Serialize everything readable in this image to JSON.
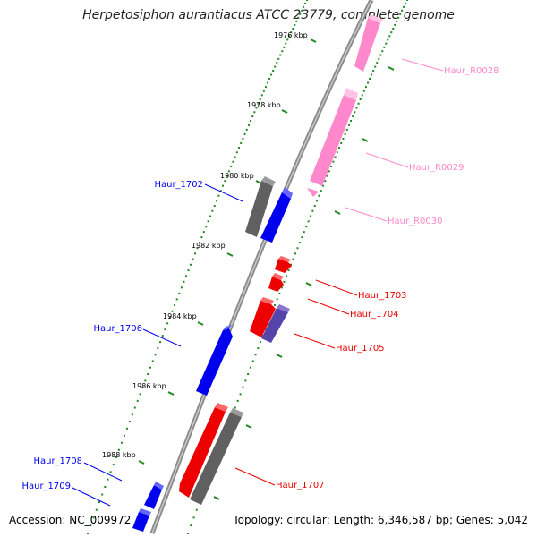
{
  "title": "Herpetosiphon aurantiacus ATCC 23779, complete genome",
  "footer": {
    "accession": "Accession: NC_009972",
    "summary": "Topology: circular; Length: 6,346,587 bp; Genes: 5,042"
  },
  "colors": {
    "forward_cds": "#0000ee",
    "reverse_cds": "#ee0000",
    "other_gene": "#606060",
    "rna": "#ff88cc",
    "pseudo": "#5544aa",
    "tick": "#228822",
    "backbone": "#888888"
  },
  "ticks": [
    {
      "label": "1976 kbp"
    },
    {
      "label": "1978 kbp"
    },
    {
      "label": "1980 kbp"
    },
    {
      "label": "1982 kbp"
    },
    {
      "label": "1984 kbp"
    },
    {
      "label": "1986 kbp"
    },
    {
      "label": "1988 kbp"
    }
  ],
  "features": [
    {
      "name": "Haur_R0028",
      "strand": "+",
      "kind": "rna"
    },
    {
      "name": "Haur_R0029",
      "strand": "+",
      "kind": "rna"
    },
    {
      "name": "Haur_R0030",
      "strand": "+",
      "kind": "rna"
    },
    {
      "name": "Haur_1702",
      "strand": "-",
      "kind": "cds"
    },
    {
      "name": "Haur_1703",
      "strand": "+",
      "kind": "cds"
    },
    {
      "name": "Haur_1704",
      "strand": "+",
      "kind": "cds"
    },
    {
      "name": "Haur_1705",
      "strand": "+",
      "kind": "cds"
    },
    {
      "name": "Haur_1706",
      "strand": "-",
      "kind": "cds"
    },
    {
      "name": "Haur_1707",
      "strand": "+",
      "kind": "cds"
    },
    {
      "name": "Haur_1708",
      "strand": "-",
      "kind": "cds"
    },
    {
      "name": "Haur_1709",
      "strand": "-",
      "kind": "cds"
    }
  ]
}
